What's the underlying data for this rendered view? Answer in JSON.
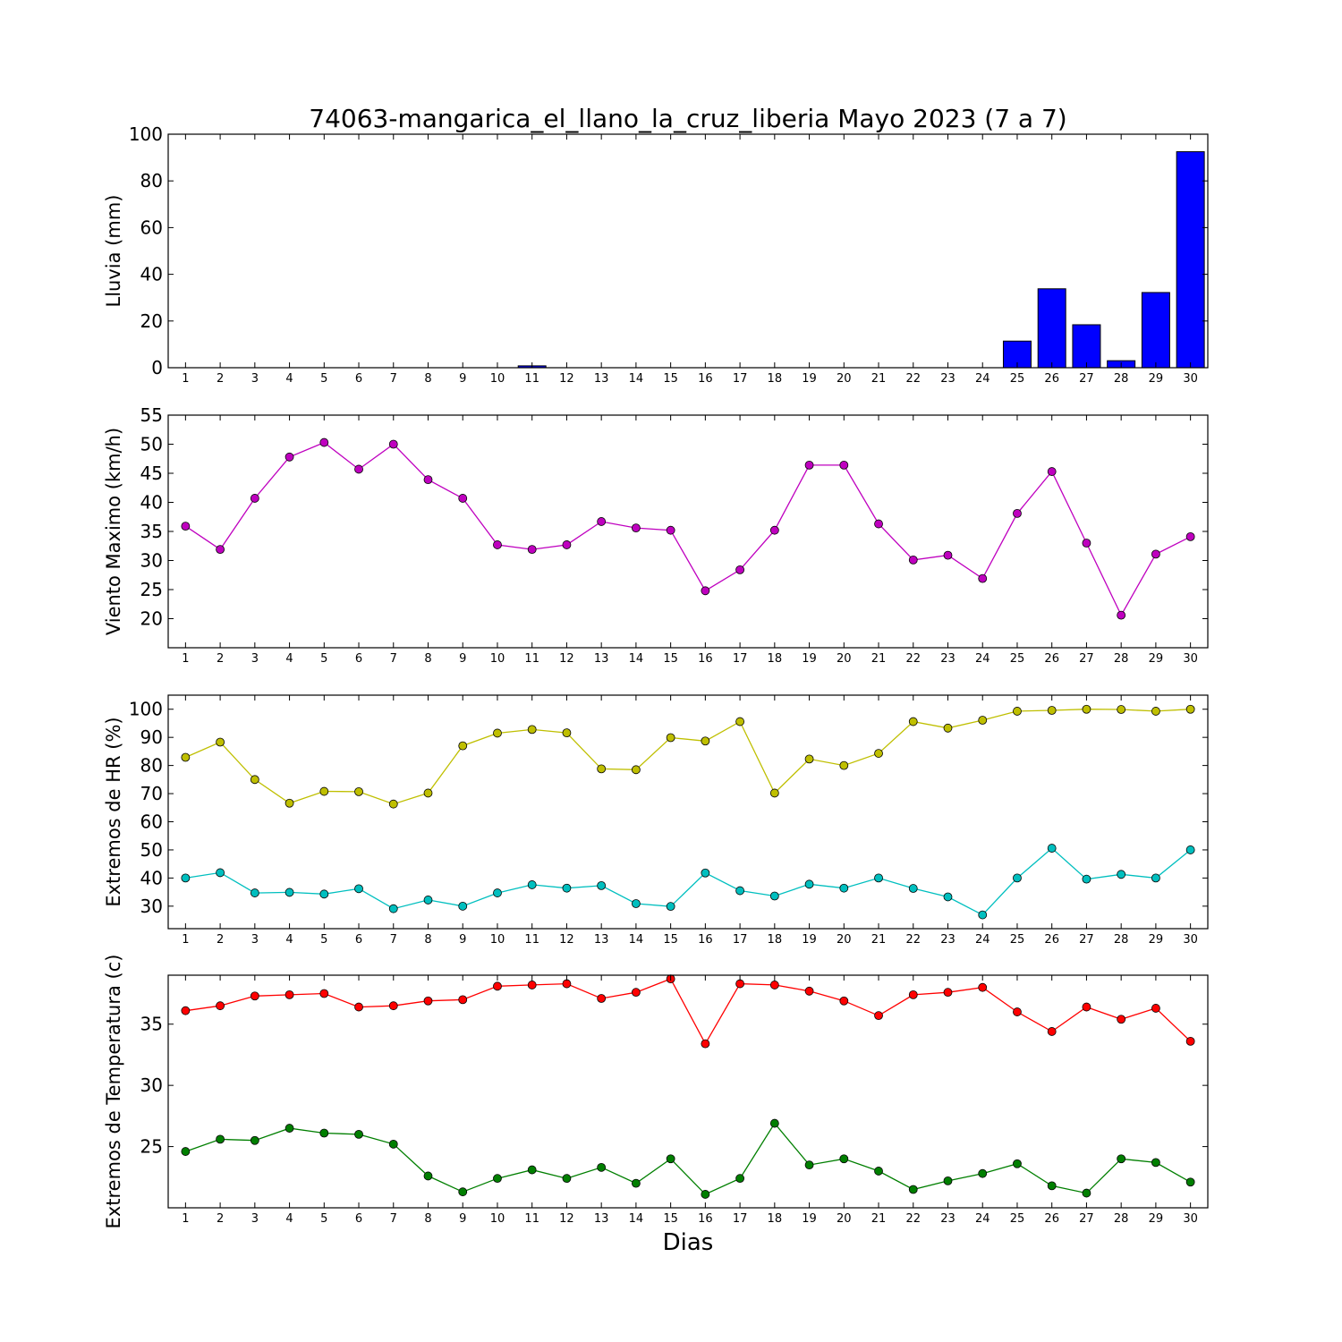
{
  "title": "74063-mangarica_el_llano_la_cruz_liberia Mayo 2023  (7 a 7)",
  "xlabel": "Dias",
  "chart_data": [
    {
      "type": "bar",
      "ylabel": "Lluvia (mm)",
      "ylim": [
        0,
        100
      ],
      "yticks": [
        0,
        20,
        40,
        60,
        80,
        100
      ],
      "x": [
        1,
        2,
        3,
        4,
        5,
        6,
        7,
        8,
        9,
        10,
        11,
        12,
        13,
        14,
        15,
        16,
        17,
        18,
        19,
        20,
        21,
        22,
        23,
        24,
        25,
        26,
        27,
        28,
        29,
        30
      ],
      "series": [
        {
          "color": "#0000ff",
          "values": [
            0,
            0,
            0,
            0,
            0,
            0,
            0,
            0,
            0,
            0,
            0.8,
            0,
            0,
            0,
            0,
            0,
            0,
            0,
            0,
            0,
            0,
            0,
            0,
            0,
            11.4,
            33.8,
            18.4,
            3.0,
            32.2,
            92.5
          ]
        }
      ]
    },
    {
      "type": "line",
      "ylabel": "Viento Maximo (km/h)",
      "ylim": [
        15,
        55
      ],
      "yticks": [
        20,
        25,
        30,
        35,
        40,
        45,
        50,
        55
      ],
      "x": [
        1,
        2,
        3,
        4,
        5,
        6,
        7,
        8,
        9,
        10,
        11,
        12,
        13,
        14,
        15,
        16,
        17,
        18,
        19,
        20,
        21,
        22,
        23,
        24,
        25,
        26,
        27,
        28,
        29,
        30
      ],
      "series": [
        {
          "color": "#bf00bf",
          "values": [
            35.9,
            31.9,
            40.7,
            47.8,
            50.3,
            45.7,
            50.0,
            43.9,
            40.7,
            32.7,
            31.9,
            32.7,
            36.7,
            35.6,
            35.2,
            24.8,
            28.4,
            35.2,
            46.4,
            46.4,
            36.3,
            30.1,
            30.9,
            26.9,
            38.1,
            45.3,
            33.0,
            20.6,
            31.1,
            34.1
          ]
        }
      ]
    },
    {
      "type": "line",
      "ylabel": "Extremos de HR (%)",
      "ylim": [
        22,
        105
      ],
      "yticks": [
        30,
        40,
        50,
        60,
        70,
        80,
        90,
        100
      ],
      "x": [
        1,
        2,
        3,
        4,
        5,
        6,
        7,
        8,
        9,
        10,
        11,
        12,
        13,
        14,
        15,
        16,
        17,
        18,
        19,
        20,
        21,
        22,
        23,
        24,
        25,
        26,
        27,
        28,
        29,
        30
      ],
      "series": [
        {
          "color": "#bfbf00",
          "values": [
            82.9,
            88.3,
            75.0,
            66.6,
            70.8,
            70.7,
            66.3,
            70.2,
            87.0,
            91.5,
            92.8,
            91.6,
            78.8,
            78.5,
            89.9,
            88.7,
            95.6,
            70.2,
            82.3,
            80.0,
            84.3,
            95.6,
            93.3,
            96.1,
            99.3,
            99.6,
            100.0,
            99.9,
            99.3,
            100.0
          ]
        },
        {
          "color": "#00bfbf",
          "values": [
            40.0,
            41.9,
            34.7,
            34.9,
            34.3,
            36.2,
            29.1,
            32.2,
            30.0,
            34.7,
            37.6,
            36.4,
            37.3,
            30.9,
            29.9,
            41.8,
            35.5,
            33.6,
            37.8,
            36.4,
            40.0,
            36.3,
            33.3,
            26.9,
            40.0,
            50.6,
            39.6,
            41.3,
            40.0,
            50.0
          ]
        }
      ]
    },
    {
      "type": "line",
      "ylabel": "Extremos de Temperatura (c)",
      "ylim": [
        20.0,
        39.0
      ],
      "yticks": [
        25,
        30,
        35
      ],
      "x": [
        1,
        2,
        3,
        4,
        5,
        6,
        7,
        8,
        9,
        10,
        11,
        12,
        13,
        14,
        15,
        16,
        17,
        18,
        19,
        20,
        21,
        22,
        23,
        24,
        25,
        26,
        27,
        28,
        29,
        30
      ],
      "series": [
        {
          "color": "#ff0000",
          "values": [
            36.1,
            36.5,
            37.3,
            37.4,
            37.5,
            36.4,
            36.5,
            36.9,
            37.0,
            38.1,
            38.2,
            38.3,
            37.1,
            37.6,
            38.7,
            33.4,
            38.3,
            38.2,
            37.7,
            36.9,
            35.7,
            37.4,
            37.6,
            38.0,
            36.0,
            34.4,
            36.4,
            35.4,
            36.3,
            33.6
          ]
        },
        {
          "color": "#007f00",
          "values": [
            24.6,
            25.6,
            25.5,
            26.5,
            26.1,
            26.0,
            25.2,
            22.6,
            21.3,
            22.4,
            23.1,
            22.4,
            23.3,
            22.0,
            24.0,
            21.1,
            22.4,
            26.9,
            23.5,
            24.0,
            23.0,
            21.5,
            22.2,
            22.8,
            23.6,
            21.8,
            21.2,
            24.0,
            23.7,
            22.1
          ]
        }
      ]
    }
  ]
}
